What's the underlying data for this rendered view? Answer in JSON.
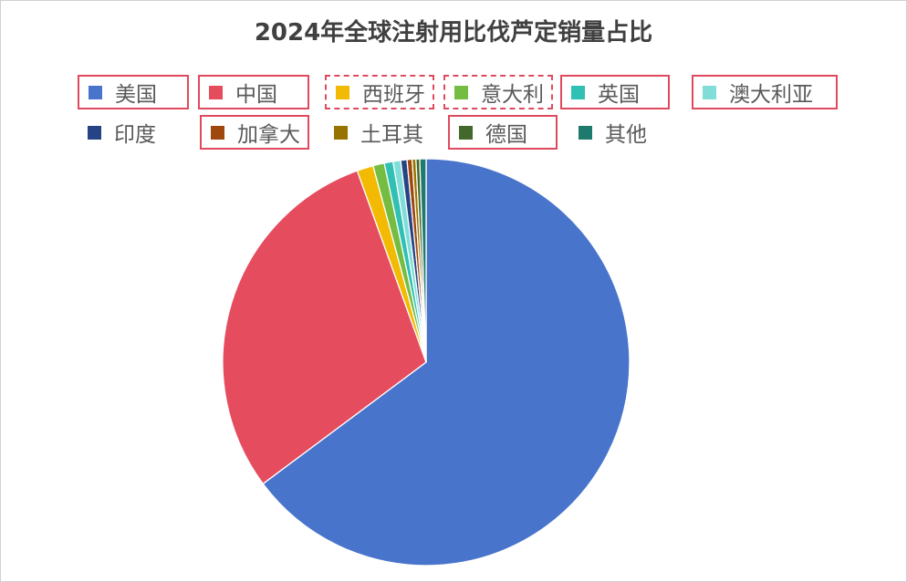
{
  "chart_data": {
    "type": "pie",
    "title": "2024年全球注射用比伐芦定销量占比",
    "unit": "%",
    "start_angle_deg": 0,
    "direction": "clockwise",
    "legend_position": "top",
    "slices": [
      {
        "label": "美国",
        "value": 64.8,
        "color": "#4874CB",
        "legend_highlight": "solid"
      },
      {
        "label": "中国",
        "value": 29.7,
        "color": "#E54C5E",
        "legend_highlight": "solid"
      },
      {
        "label": "西班牙",
        "value": 1.3,
        "color": "#F2BA02",
        "legend_highlight": "dashed"
      },
      {
        "label": "意大利",
        "value": 0.9,
        "color": "#75BD42",
        "legend_highlight": "dashed"
      },
      {
        "label": "英国",
        "value": 0.7,
        "color": "#30C0B4",
        "legend_highlight": "solid"
      },
      {
        "label": "澳大利亚",
        "value": 0.6,
        "color": "#80DDD8",
        "legend_highlight": "solid"
      },
      {
        "label": "印度",
        "value": 0.5,
        "color": "#264483",
        "legend_highlight": "none"
      },
      {
        "label": "加拿大",
        "value": 0.4,
        "color": "#9E480E",
        "legend_highlight": "solid"
      },
      {
        "label": "土耳其",
        "value": 0.3,
        "color": "#997300",
        "legend_highlight": "none"
      },
      {
        "label": "德国",
        "value": 0.3,
        "color": "#43682B",
        "legend_highlight": "solid"
      },
      {
        "label": "其他",
        "value": 0.5,
        "color": "#1F7A6E",
        "legend_highlight": "none"
      }
    ]
  }
}
